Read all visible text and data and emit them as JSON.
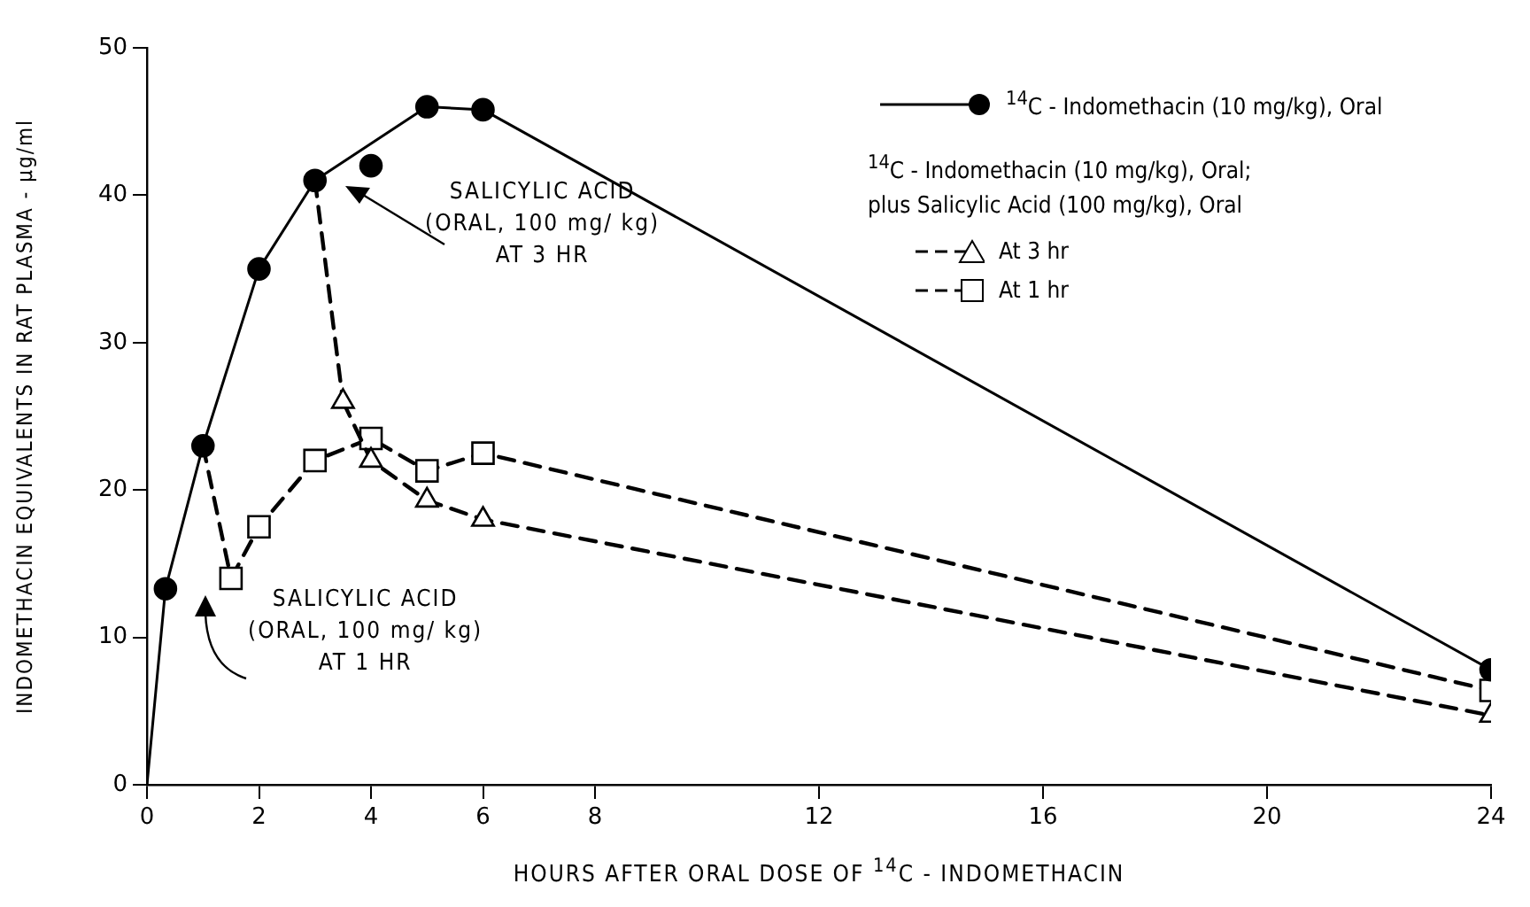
{
  "chart_data": {
    "type": "line",
    "xlabel": "HOURS AFTER ORAL DOSE OF $^{14}$C - INDOMETHACIN",
    "ylabel": "INDOMETHACIN EQUIVALENTS IN RAT PLASMA - μg/ml",
    "legend": "top right",
    "legend_title": "$^{14}$C - Indomethacin (10 mg/kg), Oral; plus Salicylic Acid (100 mg/kg), Oral",
    "grid": false,
    "xlim": [
      0,
      24
    ],
    "xticks": [
      0,
      2,
      4,
      6,
      8,
      12,
      16,
      20,
      24
    ],
    "ylim": [
      0,
      50
    ],
    "yticks": [
      0,
      10,
      20,
      30,
      40,
      50
    ],
    "series": [
      {
        "name": "$^{14}$C - Indomethacin (10 mg/kg), Oral",
        "color": "#000000",
        "marker": "circle",
        "line_style": "solid",
        "x": [
          0.33,
          1,
          2,
          3,
          5,
          6,
          24
        ],
        "values": [
          13.3,
          23,
          35,
          41,
          46,
          45.8,
          7.8
        ]
      },
      {
        "name": "At 3 hr",
        "color": "#000000",
        "marker": "triangle",
        "line_style": "dashed",
        "x": [
          3.5,
          4,
          5,
          6,
          24
        ],
        "values": [
          26,
          22,
          19.3,
          18,
          4.7
        ]
      },
      {
        "name": "At 1 hr",
        "color": "#000000",
        "marker": "square",
        "line_style": "dashed",
        "x": [
          1.5,
          2,
          3,
          4,
          5,
          6,
          24
        ],
        "values": [
          14,
          17.5,
          22,
          23.5,
          21.3,
          22.5,
          6.4
        ]
      },
      {
        "type": "line",
        "color": "#000000",
        "marker": "none",
        "line_style": "dashed",
        "x": [
          3,
          3.5
        ],
        "values": [
          41,
          26
        ]
      },
      {
        "type": "line",
        "color": "#000000",
        "marker": "none",
        "line_style": "dashed",
        "x": [
          1,
          1.5
        ],
        "values": [
          23,
          14
        ]
      },
      {
        "type": "line",
        "color": "#000000",
        "marker": "none",
        "line_style": "solid",
        "x": [
          0,
          0.33
        ],
        "values": [
          0,
          13.3
        ]
      },
      {
        "type": "scatter",
        "color": "#000000",
        "marker": "circle",
        "x": [
          4
        ],
        "values": [
          42
        ]
      }
    ],
    "annotations": [
      "SALICYLIC ACID\n(ORAL, 100 mg/ kg)\nAT 3 HR",
      "SALICYLIC ACID\n(ORAL, 100 mg/ kg)\nAT 1 HR"
    ]
  }
}
